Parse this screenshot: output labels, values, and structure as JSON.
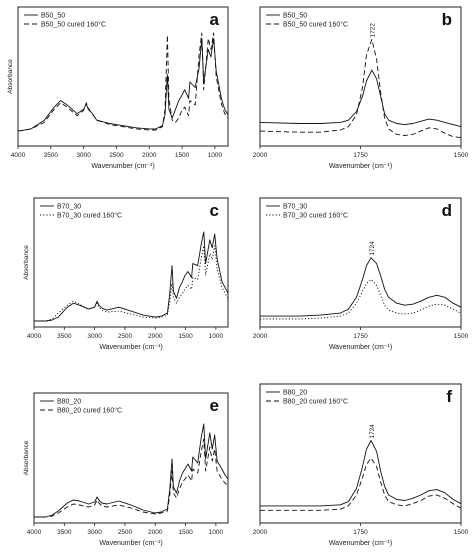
{
  "chart_data": [
    {
      "panel": "a",
      "type": "line",
      "xlabel": "Wavenumber (cm-1)",
      "ylabel": "Absorbance",
      "xlim": [
        4000,
        800
      ],
      "xticks": [
        4000,
        3500,
        3000,
        2500,
        2000,
        1500,
        1000
      ],
      "legend": "top-left",
      "series": [
        {
          "name": "B50_50",
          "style": "solid",
          "x": [
            4000,
            3800,
            3600,
            3450,
            3350,
            3250,
            3100,
            3000,
            2960,
            2930,
            2880,
            2800,
            2600,
            2400,
            2200,
            2000,
            1900,
            1800,
            1760,
            1724,
            1700,
            1650,
            1600,
            1550,
            1510,
            1460,
            1400,
            1380,
            1300,
            1240,
            1200,
            1170,
            1100,
            1060,
            1020,
            980,
            900,
            850,
            800
          ],
          "y": [
            0.1,
            0.12,
            0.2,
            0.32,
            0.38,
            0.34,
            0.26,
            0.3,
            0.35,
            0.3,
            0.27,
            0.2,
            0.17,
            0.15,
            0.13,
            0.12,
            0.12,
            0.15,
            0.25,
            0.62,
            0.3,
            0.22,
            0.3,
            0.38,
            0.42,
            0.48,
            0.4,
            0.55,
            0.5,
            0.68,
            0.95,
            0.55,
            0.85,
            0.78,
            0.95,
            0.65,
            0.4,
            0.3,
            0.25
          ]
        },
        {
          "name": "B50_50 cured 160°C",
          "style": "dashed",
          "x": [
            4000,
            3800,
            3600,
            3450,
            3350,
            3250,
            3100,
            3000,
            2960,
            2930,
            2880,
            2800,
            2600,
            2400,
            2200,
            2000,
            1900,
            1800,
            1760,
            1724,
            1700,
            1650,
            1600,
            1550,
            1510,
            1460,
            1400,
            1380,
            1300,
            1240,
            1200,
            1170,
            1100,
            1060,
            1020,
            980,
            900,
            850,
            800
          ],
          "y": [
            0.1,
            0.12,
            0.18,
            0.3,
            0.36,
            0.32,
            0.24,
            0.29,
            0.36,
            0.31,
            0.27,
            0.2,
            0.16,
            0.14,
            0.12,
            0.11,
            0.11,
            0.14,
            0.3,
            0.98,
            0.4,
            0.2,
            0.18,
            0.22,
            0.28,
            0.32,
            0.24,
            0.38,
            0.34,
            0.8,
            1.0,
            0.48,
            0.95,
            0.85,
            1.0,
            0.6,
            0.35,
            0.26,
            0.22
          ]
        }
      ]
    },
    {
      "panel": "b",
      "type": "line",
      "xlabel": "Wavenumber (cm-1)",
      "xlim": [
        2000,
        1500
      ],
      "xticks": [
        2000,
        1750,
        1500
      ],
      "peak_label": "1722",
      "legend": "top-left",
      "series": [
        {
          "name": "B50_50",
          "style": "solid",
          "x": [
            2000,
            1900,
            1850,
            1800,
            1780,
            1760,
            1745,
            1735,
            1722,
            1710,
            1700,
            1690,
            1680,
            1660,
            1640,
            1620,
            1600,
            1580,
            1560,
            1540,
            1520,
            1500
          ],
          "y": [
            0.18,
            0.17,
            0.17,
            0.18,
            0.2,
            0.28,
            0.42,
            0.56,
            0.66,
            0.58,
            0.42,
            0.26,
            0.2,
            0.17,
            0.16,
            0.17,
            0.19,
            0.21,
            0.2,
            0.18,
            0.16,
            0.14
          ]
        },
        {
          "name": "B50_50 cured 160°C",
          "style": "dashed",
          "x": [
            2000,
            1900,
            1850,
            1800,
            1780,
            1760,
            1745,
            1735,
            1722,
            1710,
            1700,
            1690,
            1680,
            1660,
            1640,
            1620,
            1600,
            1580,
            1560,
            1540,
            1520,
            1500
          ],
          "y": [
            0.1,
            0.09,
            0.09,
            0.11,
            0.14,
            0.25,
            0.5,
            0.8,
            0.94,
            0.76,
            0.46,
            0.22,
            0.12,
            0.07,
            0.06,
            0.07,
            0.1,
            0.13,
            0.12,
            0.08,
            0.05,
            0.04
          ]
        }
      ]
    },
    {
      "panel": "c",
      "type": "line",
      "xlabel": "Wavenumber (cm-1)",
      "ylabel": "Absorbance",
      "xlim": [
        4000,
        800
      ],
      "xticks": [
        4000,
        3500,
        3000,
        2500,
        2000,
        1500,
        1000
      ],
      "legend": "top-left",
      "series": [
        {
          "name": "B70_30",
          "style": "solid",
          "x": [
            4000,
            3800,
            3700,
            3600,
            3450,
            3350,
            3250,
            3100,
            3000,
            2960,
            2930,
            2880,
            2800,
            2600,
            2400,
            2200,
            2000,
            1900,
            1800,
            1760,
            1724,
            1700,
            1650,
            1600,
            1550,
            1510,
            1460,
            1400,
            1380,
            1300,
            1240,
            1200,
            1170,
            1100,
            1060,
            1020,
            980,
            900,
            850,
            800
          ],
          "y": [
            0.02,
            0.02,
            0.03,
            0.06,
            0.16,
            0.2,
            0.18,
            0.14,
            0.16,
            0.22,
            0.18,
            0.15,
            0.13,
            0.16,
            0.12,
            0.08,
            0.06,
            0.07,
            0.1,
            0.3,
            0.58,
            0.32,
            0.25,
            0.36,
            0.42,
            0.48,
            0.52,
            0.46,
            0.6,
            0.58,
            0.8,
            0.92,
            0.6,
            0.84,
            0.76,
            0.9,
            0.65,
            0.42,
            0.36,
            0.3
          ]
        },
        {
          "name": "B70_30 cured 160°C",
          "style": "dotted",
          "x": [
            4000,
            3800,
            3700,
            3600,
            3450,
            3350,
            3250,
            3100,
            3000,
            2960,
            2930,
            2880,
            2800,
            2600,
            2400,
            2200,
            2000,
            1900,
            1800,
            1760,
            1724,
            1700,
            1650,
            1600,
            1550,
            1510,
            1460,
            1400,
            1380,
            1300,
            1240,
            1200,
            1170,
            1100,
            1060,
            1020,
            980,
            900,
            850,
            800
          ],
          "y": [
            0.02,
            0.02,
            0.04,
            0.1,
            0.18,
            0.22,
            0.19,
            0.14,
            0.16,
            0.2,
            0.16,
            0.13,
            0.11,
            0.12,
            0.09,
            0.06,
            0.05,
            0.06,
            0.08,
            0.22,
            0.4,
            0.26,
            0.2,
            0.26,
            0.3,
            0.34,
            0.38,
            0.34,
            0.46,
            0.44,
            0.66,
            0.78,
            0.48,
            0.7,
            0.64,
            0.78,
            0.55,
            0.36,
            0.3,
            0.25
          ]
        }
      ]
    },
    {
      "panel": "d",
      "type": "line",
      "xlabel": "Wavenumber (cm-1)",
      "xlim": [
        2000,
        1500
      ],
      "xticks": [
        2000,
        1750,
        1500
      ],
      "peak_label": "1724",
      "legend": "top-left",
      "series": [
        {
          "name": "B70_30",
          "style": "solid",
          "x": [
            2000,
            1900,
            1850,
            1800,
            1780,
            1760,
            1745,
            1735,
            1724,
            1710,
            1700,
            1690,
            1680,
            1660,
            1640,
            1620,
            1600,
            1580,
            1560,
            1540,
            1520,
            1500
          ],
          "y": [
            0.07,
            0.07,
            0.08,
            0.1,
            0.14,
            0.26,
            0.44,
            0.58,
            0.66,
            0.6,
            0.48,
            0.34,
            0.26,
            0.2,
            0.18,
            0.19,
            0.22,
            0.26,
            0.28,
            0.26,
            0.2,
            0.16
          ]
        },
        {
          "name": "B70_30 cured 160°C",
          "style": "dotted",
          "x": [
            2000,
            1900,
            1850,
            1800,
            1780,
            1760,
            1745,
            1735,
            1724,
            1710,
            1700,
            1690,
            1680,
            1660,
            1640,
            1620,
            1600,
            1580,
            1560,
            1540,
            1520,
            1500
          ],
          "y": [
            0.04,
            0.04,
            0.05,
            0.07,
            0.1,
            0.2,
            0.32,
            0.4,
            0.44,
            0.38,
            0.28,
            0.18,
            0.13,
            0.1,
            0.09,
            0.1,
            0.13,
            0.17,
            0.19,
            0.18,
            0.14,
            0.1
          ]
        }
      ]
    },
    {
      "panel": "e",
      "type": "line",
      "xlabel": "Wavenumber (cm-1)",
      "ylabel": "Absorbance",
      "xlim": [
        4000,
        800
      ],
      "xticks": [
        4000,
        3500,
        3000,
        2500,
        2000,
        1500,
        1000
      ],
      "legend": "top-left",
      "series": [
        {
          "name": "B80_20",
          "style": "solid",
          "x": [
            4000,
            3800,
            3700,
            3600,
            3450,
            3350,
            3250,
            3100,
            3000,
            2960,
            2930,
            2880,
            2800,
            2600,
            2400,
            2200,
            2000,
            1900,
            1800,
            1760,
            1724,
            1700,
            1650,
            1600,
            1550,
            1510,
            1460,
            1400,
            1380,
            1300,
            1240,
            1200,
            1170,
            1100,
            1060,
            1020,
            980,
            900,
            850,
            800
          ],
          "y": [
            0.02,
            0.02,
            0.04,
            0.08,
            0.16,
            0.19,
            0.18,
            0.15,
            0.17,
            0.22,
            0.19,
            0.16,
            0.15,
            0.18,
            0.14,
            0.09,
            0.06,
            0.07,
            0.1,
            0.3,
            0.6,
            0.32,
            0.26,
            0.38,
            0.46,
            0.5,
            0.55,
            0.48,
            0.62,
            0.56,
            0.82,
            0.95,
            0.6,
            0.86,
            0.7,
            0.84,
            0.58,
            0.5,
            0.44,
            0.4
          ]
        },
        {
          "name": "B80_20 cured 160°C",
          "style": "dashed",
          "x": [
            4000,
            3800,
            3700,
            3600,
            3450,
            3350,
            3250,
            3100,
            3000,
            2960,
            2930,
            2880,
            2800,
            2600,
            2400,
            2200,
            2000,
            1900,
            1800,
            1760,
            1724,
            1700,
            1650,
            1600,
            1550,
            1510,
            1460,
            1400,
            1380,
            1300,
            1240,
            1200,
            1170,
            1100,
            1060,
            1020,
            980,
            900,
            850,
            800
          ],
          "y": [
            0.02,
            0.02,
            0.03,
            0.06,
            0.12,
            0.15,
            0.14,
            0.12,
            0.14,
            0.19,
            0.16,
            0.13,
            0.12,
            0.14,
            0.11,
            0.07,
            0.05,
            0.06,
            0.08,
            0.24,
            0.48,
            0.26,
            0.21,
            0.3,
            0.37,
            0.4,
            0.44,
            0.38,
            0.5,
            0.46,
            0.68,
            0.8,
            0.48,
            0.72,
            0.58,
            0.7,
            0.48,
            0.4,
            0.36,
            0.33
          ]
        }
      ]
    },
    {
      "panel": "f",
      "type": "line",
      "xlabel": "Wavenumber (cm-1)",
      "xlim": [
        2000,
        1500
      ],
      "xticks": [
        2000,
        1750,
        1500
      ],
      "peak_label": "1724",
      "legend": "top-left",
      "series": [
        {
          "name": "B80_20",
          "style": "solid",
          "x": [
            2000,
            1900,
            1850,
            1800,
            1780,
            1760,
            1745,
            1735,
            1724,
            1710,
            1700,
            1690,
            1680,
            1660,
            1640,
            1620,
            1600,
            1580,
            1560,
            1540,
            1520,
            1500
          ],
          "y": [
            0.12,
            0.12,
            0.12,
            0.13,
            0.16,
            0.28,
            0.48,
            0.64,
            0.72,
            0.62,
            0.44,
            0.3,
            0.22,
            0.18,
            0.17,
            0.19,
            0.22,
            0.26,
            0.27,
            0.24,
            0.18,
            0.14
          ]
        },
        {
          "name": "B80_20 cured 160°C",
          "style": "dashed",
          "x": [
            2000,
            1900,
            1850,
            1800,
            1780,
            1760,
            1745,
            1735,
            1724,
            1710,
            1700,
            1690,
            1680,
            1660,
            1640,
            1620,
            1600,
            1580,
            1560,
            1540,
            1520,
            1500
          ],
          "y": [
            0.08,
            0.08,
            0.08,
            0.09,
            0.12,
            0.22,
            0.38,
            0.5,
            0.56,
            0.48,
            0.34,
            0.22,
            0.16,
            0.13,
            0.12,
            0.14,
            0.17,
            0.21,
            0.22,
            0.19,
            0.14,
            0.1
          ]
        }
      ]
    }
  ],
  "labels": {
    "xaxis_title": "Wavenumber (cm⁻¹)",
    "yaxis_title": "Absorbance"
  }
}
